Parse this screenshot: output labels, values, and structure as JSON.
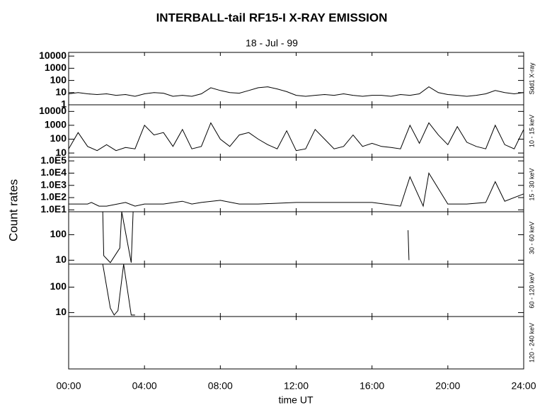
{
  "figure": {
    "title": "INTERBALL-tail  RF15-I   X-RAY  EMISSION",
    "subtitle": "18 - Jul - 99",
    "ylabel": "Count  rates",
    "xlabel": "time UT",
    "xlim": [
      0,
      24
    ],
    "xticks": [
      {
        "value": 0,
        "label": "00:00"
      },
      {
        "value": 4,
        "label": "04:00"
      },
      {
        "value": 8,
        "label": "08:00"
      },
      {
        "value": 12,
        "label": "12:00"
      },
      {
        "value": 16,
        "label": "16:00"
      },
      {
        "value": 20,
        "label": "20:00"
      },
      {
        "value": 24,
        "label": "24:00"
      }
    ]
  },
  "chart_data": [
    {
      "type": "line",
      "label": "Sdd1  X-ray",
      "log_scale": true,
      "color": "#000000",
      "ylim": [
        1,
        20000
      ],
      "yticks": [
        1,
        10,
        100,
        1000,
        10000
      ],
      "x": [
        0,
        0.5,
        1,
        1.5,
        2,
        2.5,
        3,
        3.5,
        4,
        4.5,
        5,
        5.5,
        6,
        6.5,
        7,
        7.5,
        8,
        8.5,
        9,
        9.5,
        10,
        10.5,
        11,
        11.5,
        12,
        12.5,
        13,
        13.5,
        14,
        14.5,
        15,
        15.5,
        16,
        16.5,
        17,
        17.5,
        18,
        18.5,
        19,
        19.5,
        20,
        20.5,
        21,
        21.5,
        22,
        22.5,
        23,
        23.5,
        24
      ],
      "values": [
        8,
        10,
        8,
        7,
        8,
        6,
        7,
        5,
        8,
        10,
        9,
        5,
        6,
        5,
        8,
        25,
        15,
        10,
        9,
        15,
        25,
        30,
        20,
        12,
        6,
        5,
        6,
        7,
        6,
        8,
        6,
        5,
        6,
        6,
        5,
        7,
        6,
        8,
        30,
        10,
        7,
        6,
        5,
        6,
        8,
        15,
        10,
        8,
        10
      ]
    },
    {
      "type": "line",
      "label": "10  -  15  keV",
      "log_scale": true,
      "color": "#000000",
      "ylim": [
        5,
        30000
      ],
      "yticks": [
        10,
        100,
        1000,
        10000
      ],
      "x": [
        0,
        0.5,
        1,
        1.5,
        2,
        2.5,
        3,
        3.5,
        4,
        4.5,
        5,
        5.5,
        6,
        6.5,
        7,
        7.5,
        8,
        8.5,
        9,
        9.5,
        10,
        10.5,
        11,
        11.5,
        12,
        12.5,
        13,
        13.5,
        14,
        14.5,
        15,
        15.5,
        16,
        16.5,
        17,
        17.5,
        18,
        18.5,
        19,
        19.5,
        20,
        20.5,
        21,
        21.5,
        22,
        22.5,
        23,
        23.5,
        24
      ],
      "values": [
        20,
        300,
        30,
        15,
        40,
        15,
        25,
        20,
        1000,
        200,
        300,
        30,
        500,
        20,
        30,
        1500,
        100,
        30,
        200,
        300,
        100,
        40,
        20,
        400,
        15,
        20,
        500,
        100,
        20,
        30,
        200,
        30,
        50,
        30,
        25,
        20,
        1000,
        50,
        1500,
        200,
        40,
        800,
        60,
        30,
        20,
        1000,
        40,
        20,
        500
      ]
    },
    {
      "type": "line",
      "label": "15  -  30  keV",
      "log_scale": true,
      "color": "#000000",
      "ylim": [
        7,
        200000
      ],
      "yticks": [
        {
          "value": 10,
          "label": "1.0E1"
        },
        {
          "value": 100,
          "label": "1.0E2"
        },
        {
          "value": 1000,
          "label": "1.0E3"
        },
        {
          "value": 10000,
          "label": "1.0E4"
        },
        {
          "value": 100000,
          "label": "1.0E5"
        }
      ],
      "x": [
        0,
        1,
        1.2,
        1.6,
        2,
        3,
        3.5,
        4,
        5,
        6,
        6.5,
        7,
        8,
        9,
        10,
        12,
        14,
        16,
        17.5,
        18,
        18.7,
        19,
        20,
        21,
        22,
        22.5,
        23,
        24
      ],
      "values": [
        30,
        30,
        40,
        20,
        20,
        40,
        20,
        30,
        30,
        50,
        30,
        40,
        60,
        30,
        30,
        40,
        40,
        40,
        20,
        5000,
        20,
        10000,
        30,
        30,
        40,
        2000,
        50,
        200
      ]
    },
    {
      "type": "line",
      "label": "30  -  60  keV",
      "log_scale": true,
      "color": "#000000",
      "ylim": [
        7,
        800
      ],
      "yticks": [
        10,
        100
      ],
      "x": [
        1.8,
        1.85,
        2.2,
        2.7,
        2.8,
        3.3,
        3.4,
        10,
        17.9,
        17.95
      ],
      "values": [
        800,
        15,
        8,
        30,
        800,
        8,
        800,
        null,
        150,
        10
      ]
    },
    {
      "type": "line",
      "label": "60  -  120  keV",
      "log_scale": true,
      "color": "#000000",
      "ylim": [
        7,
        800
      ],
      "yticks": [
        10,
        100
      ],
      "x": [
        1.8,
        2.2,
        2.4,
        2.6,
        2.9,
        3.3,
        3.5
      ],
      "values": [
        800,
        15,
        8,
        12,
        800,
        8,
        8
      ]
    },
    {
      "type": "line",
      "label": "120  -  240  keV",
      "log_scale": true,
      "color": "#000000"
    }
  ]
}
